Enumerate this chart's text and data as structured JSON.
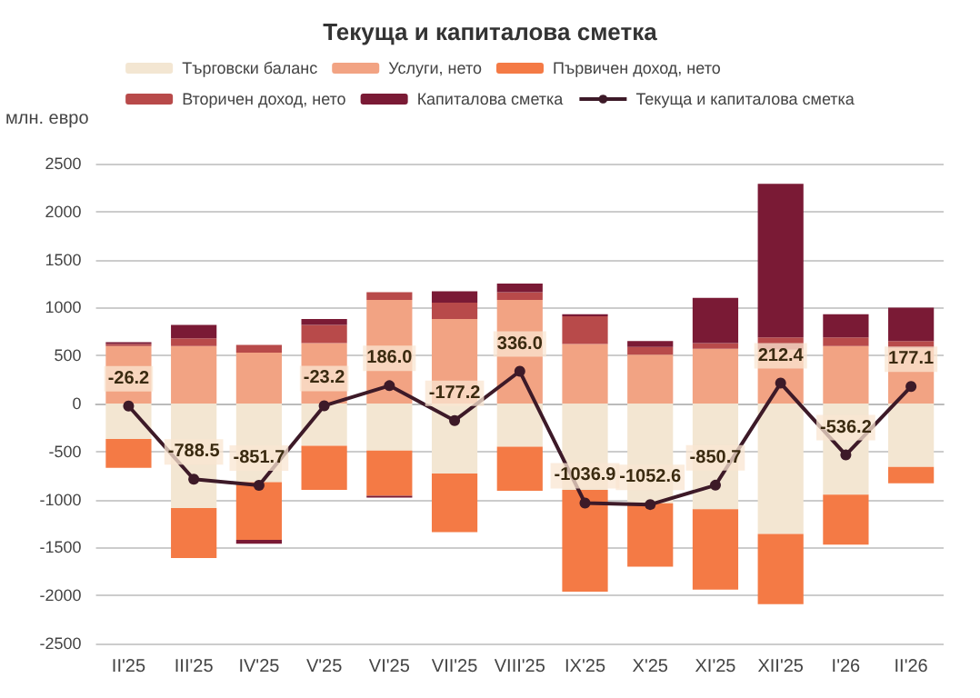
{
  "chart_data": {
    "type": "bar",
    "stacked": true,
    "title": "Текуща и капиталова сметка",
    "ylabel": "млн. евро",
    "categories": [
      "II'25",
      "III'25",
      "IV'25",
      "V'25",
      "VI'25",
      "VII'25",
      "VIII'25",
      "IX'25",
      "X'25",
      "XI'25",
      "XII'25",
      "I'26",
      "II'26"
    ],
    "series": [
      {
        "name": "Търговски баланс",
        "color": "#f3e6d2",
        "values": [
          -370,
          -1090,
          -820,
          -440,
          -490,
          -730,
          -450,
          -900,
          -1040,
          -1100,
          -1360,
          -950,
          -660
        ]
      },
      {
        "name": "Услуги, нето",
        "color": "#f2a383",
        "values": [
          600,
          600,
          530,
          630,
          1080,
          880,
          1080,
          620,
          510,
          570,
          560,
          600,
          580
        ]
      },
      {
        "name": "Първичен доход, нето",
        "color": "#f47a45",
        "values": [
          -300,
          -520,
          -600,
          -460,
          -470,
          -610,
          -460,
          -1060,
          -660,
          -840,
          -730,
          -520,
          -170
        ]
      },
      {
        "name": "Вторичен доход, нето",
        "color": "#b84a4a",
        "values": [
          20,
          80,
          80,
          190,
          80,
          170,
          80,
          290,
          80,
          60,
          130,
          90,
          70
        ]
      },
      {
        "name": "Капиталова сметка",
        "color": "#7a1a35",
        "values": [
          20,
          140,
          -40,
          60,
          -20,
          120,
          90,
          20,
          60,
          470,
          1600,
          240,
          350
        ]
      },
      {
        "name": "Текуща и капиталова сметка",
        "type": "line",
        "color": "#3d1a28",
        "marker": "circle",
        "values": [
          -26.2,
          -788.5,
          -851.7,
          -23.2,
          186.0,
          -177.2,
          336.0,
          -1036.9,
          -1052.6,
          -850.7,
          212.4,
          -536.2,
          177.1
        ],
        "value_labels": [
          "-26.2",
          "-788.5",
          "-851.7",
          "-23.2",
          "186.0",
          "-177.2",
          "336.0",
          "-1036.9",
          "-1052.6",
          "-850.7",
          "212.4",
          "-536.2",
          "177.1"
        ]
      }
    ],
    "ylim": [
      -2500,
      2500
    ],
    "yticks": [
      -2500,
      -2000,
      -1500,
      -1000,
      -500,
      0,
      500,
      1000,
      1500,
      2000,
      2500
    ],
    "grid": "y",
    "legend": "top"
  }
}
